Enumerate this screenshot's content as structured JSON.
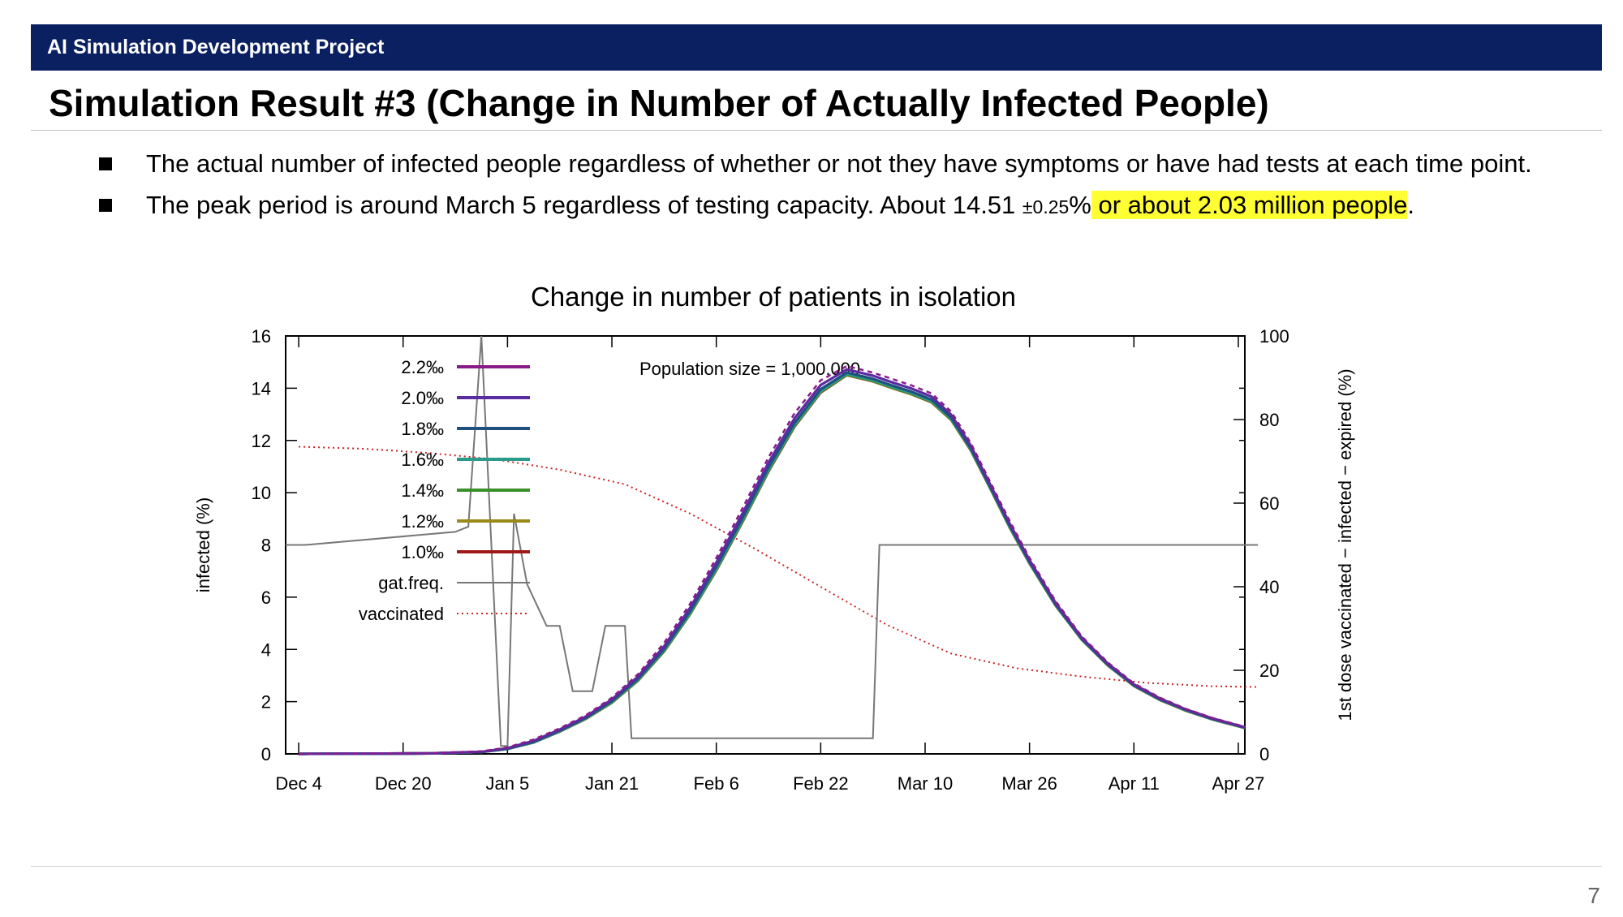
{
  "header": {
    "project": "AI Simulation Development Project"
  },
  "title": "Simulation Result #3 (Change in Number of Actually Infected People)",
  "bullets": [
    {
      "text": "The actual number of infected people regardless of whether or not they have symptoms or have had tests at each time point."
    },
    {
      "pre": "The peak period is around March 5 regardless of testing capacity. About 14.51 ",
      "pm": "±0.25",
      "pct": "%",
      "highlight": " or about 2.03 million people",
      "end": "."
    }
  ],
  "page_number": "7",
  "colors": {
    "header_bg": "#0a2060",
    "highlight": "#ffff33"
  },
  "chart_data": {
    "type": "line",
    "title": "Change in number of patients in isolation",
    "annotation": "Population size = 1,000,000",
    "ylabel": "infected (%)",
    "y2label": "1st dose vaccinated − infected − expired (%)",
    "ylim": [
      0,
      16
    ],
    "y2lim": [
      0,
      100
    ],
    "yticks": [
      0,
      2,
      4,
      6,
      8,
      10,
      12,
      14,
      16
    ],
    "y2ticks": [
      0,
      20,
      40,
      60,
      80,
      100
    ],
    "xticks": [
      "Dec 4",
      "Dec 20",
      "Jan 5",
      "Jan 21",
      "Feb 6",
      "Feb 22",
      "Mar 10",
      "Mar 26",
      "Apr 11",
      "Apr 27"
    ],
    "xrange_days": [
      -2,
      145
    ],
    "legend_position": "top-left",
    "infected_days": [
      0,
      20,
      28,
      32,
      36,
      40,
      44,
      48,
      52,
      56,
      60,
      64,
      68,
      72,
      76,
      80,
      84,
      88,
      91,
      94,
      97,
      100,
      103,
      106,
      109,
      112,
      116,
      120,
      124,
      128,
      132,
      136,
      140,
      145
    ],
    "series": [
      {
        "name": "2.2‰",
        "color": "#8b1a89",
        "dash": "6,5",
        "values": [
          0,
          0.03,
          0.1,
          0.25,
          0.55,
          0.98,
          1.48,
          2.15,
          3.05,
          4.25,
          5.75,
          7.5,
          9.4,
          11.35,
          13.05,
          14.3,
          14.85,
          14.6,
          14.35,
          14.1,
          13.8,
          13.1,
          11.9,
          10.4,
          8.9,
          7.5,
          5.85,
          4.5,
          3.5,
          2.7,
          2.15,
          1.72,
          1.38,
          1.04
        ]
      },
      {
        "name": "2.0‰",
        "color": "#5a2ca0",
        "dash": "",
        "values": [
          0,
          0.02,
          0.08,
          0.22,
          0.5,
          0.93,
          1.43,
          2.08,
          2.96,
          4.12,
          5.6,
          7.32,
          9.2,
          11.15,
          12.85,
          14.12,
          14.72,
          14.48,
          14.22,
          13.98,
          13.68,
          12.98,
          11.8,
          10.3,
          8.8,
          7.42,
          5.78,
          4.45,
          3.46,
          2.66,
          2.12,
          1.7,
          1.36,
          1.02
        ]
      },
      {
        "name": "1.8‰",
        "color": "#1f5080",
        "dash": "",
        "values": [
          0,
          0.02,
          0.07,
          0.2,
          0.46,
          0.89,
          1.38,
          2.02,
          2.88,
          4.02,
          5.47,
          7.17,
          9.03,
          10.97,
          12.68,
          13.96,
          14.6,
          14.36,
          14.1,
          13.86,
          13.56,
          12.87,
          11.7,
          10.22,
          8.72,
          7.35,
          5.72,
          4.41,
          3.42,
          2.63,
          2.09,
          1.68,
          1.34,
          1.01
        ]
      },
      {
        "name": "1.6‰",
        "color": "#2a9a8a",
        "dash": "",
        "values": [
          0,
          0.02,
          0.07,
          0.19,
          0.45,
          0.87,
          1.36,
          1.99,
          2.84,
          3.97,
          5.4,
          7.09,
          8.94,
          10.88,
          12.6,
          13.89,
          14.55,
          14.31,
          14.05,
          13.81,
          13.51,
          12.83,
          11.66,
          10.19,
          8.69,
          7.32,
          5.7,
          4.39,
          3.41,
          2.62,
          2.08,
          1.67,
          1.33,
          1.0
        ]
      },
      {
        "name": "1.4‰",
        "color": "#3a8f2a",
        "dash": "",
        "values": [
          0,
          0.02,
          0.07,
          0.19,
          0.44,
          0.86,
          1.35,
          1.97,
          2.82,
          3.94,
          5.37,
          7.05,
          8.9,
          10.84,
          12.56,
          13.86,
          14.52,
          14.28,
          14.02,
          13.78,
          13.48,
          12.8,
          11.64,
          10.17,
          8.67,
          7.3,
          5.69,
          4.38,
          3.4,
          2.61,
          2.07,
          1.66,
          1.33,
          1.0
        ]
      },
      {
        "name": "1.2‰",
        "color": "#9a8a1a",
        "dash": "",
        "values": [
          0,
          0.02,
          0.07,
          0.19,
          0.44,
          0.86,
          1.34,
          1.96,
          2.81,
          3.93,
          5.36,
          7.04,
          8.89,
          10.83,
          12.55,
          13.85,
          14.51,
          14.27,
          14.01,
          13.77,
          13.47,
          12.79,
          11.63,
          10.16,
          8.66,
          7.3,
          5.68,
          4.38,
          3.4,
          2.61,
          2.07,
          1.66,
          1.32,
          0.99
        ]
      },
      {
        "name": "1.0‰",
        "color": "#a01818",
        "dash": "",
        "values": [
          0,
          0.02,
          0.07,
          0.19,
          0.44,
          0.85,
          1.34,
          1.96,
          2.8,
          3.92,
          5.35,
          7.02,
          8.87,
          10.81,
          12.53,
          13.83,
          14.5,
          14.26,
          14.0,
          13.76,
          13.46,
          12.78,
          11.62,
          10.15,
          8.65,
          7.29,
          5.68,
          4.37,
          3.39,
          2.6,
          2.06,
          1.65,
          1.32,
          0.99
        ]
      },
      {
        "name": "gat.freq.",
        "color": "#777777",
        "dash": "",
        "axis": "y",
        "x": [
          -2,
          1,
          24,
          25,
          26,
          28,
          31,
          32,
          33,
          35,
          38,
          39,
          40,
          42,
          45,
          47,
          48,
          50,
          51,
          53,
          88,
          89,
          90,
          147
        ],
        "values": [
          8,
          8,
          8.5,
          8.6,
          8.7,
          16,
          0.3,
          0.3,
          9.2,
          6.5,
          4.9,
          4.9,
          4.9,
          2.4,
          2.4,
          4.9,
          4.9,
          4.9,
          0.6,
          0.6,
          0.6,
          8,
          8,
          8
        ]
      },
      {
        "name": "vaccinated",
        "color": "#cc2222",
        "dash": "2,4",
        "axis": "y2",
        "x": [
          0,
          10,
          20,
          30,
          40,
          50,
          60,
          70,
          80,
          90,
          100,
          110,
          120,
          130,
          140,
          147
        ],
        "values": [
          73.5,
          73,
          72,
          70.5,
          68,
          64.5,
          57.5,
          49,
          40,
          31,
          24,
          20.5,
          18.5,
          17,
          16.2,
          16
        ]
      }
    ]
  }
}
